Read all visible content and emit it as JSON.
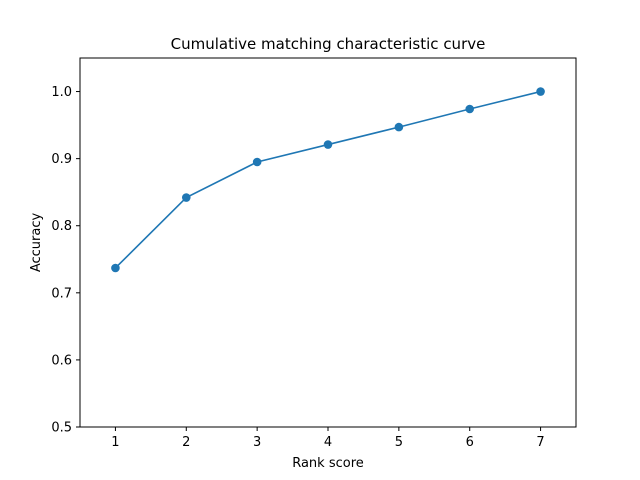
{
  "chart_data": {
    "type": "line",
    "title": "Cumulative matching characteristic curve",
    "xlabel": "Rank score",
    "ylabel": "Accuracy",
    "x": [
      1,
      2,
      3,
      4,
      5,
      6,
      7
    ],
    "series": [
      {
        "values": [
          0.737,
          0.842,
          0.895,
          0.921,
          0.947,
          0.974,
          1.0
        ],
        "color": "#1f77b4",
        "marker": "circle"
      }
    ],
    "xlim": [
      0.5,
      7.5
    ],
    "ylim": [
      0.5,
      1.05
    ],
    "xticks": [
      1,
      2,
      3,
      4,
      5,
      6,
      7
    ],
    "yticks": [
      0.5,
      0.6,
      0.7,
      0.8,
      0.9,
      1.0
    ],
    "ytick_labels": [
      "0.5",
      "0.6",
      "0.7",
      "0.8",
      "0.9",
      "1.0"
    ],
    "grid": false,
    "legend": "none"
  }
}
